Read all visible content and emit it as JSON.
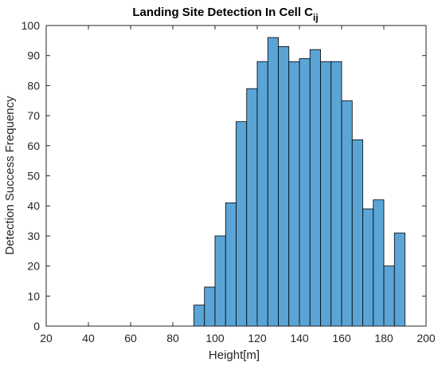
{
  "chart_data": {
    "type": "bar",
    "title": "Landing Site Detection In Cell C",
    "title_subscript": "ij",
    "xlabel": "Height[m]",
    "ylabel": "Detection Success Frequency",
    "xlim": [
      20,
      200
    ],
    "ylim": [
      0,
      100
    ],
    "xticks": [
      20,
      40,
      60,
      80,
      100,
      120,
      140,
      160,
      180,
      200
    ],
    "yticks": [
      0,
      10,
      20,
      30,
      40,
      50,
      60,
      70,
      80,
      90,
      100
    ],
    "bin_width": 5,
    "bins": [
      {
        "start": 90,
        "end": 95,
        "value": 7
      },
      {
        "start": 95,
        "end": 100,
        "value": 13
      },
      {
        "start": 100,
        "end": 105,
        "value": 30
      },
      {
        "start": 105,
        "end": 110,
        "value": 41
      },
      {
        "start": 110,
        "end": 115,
        "value": 68
      },
      {
        "start": 115,
        "end": 120,
        "value": 79
      },
      {
        "start": 120,
        "end": 125,
        "value": 88
      },
      {
        "start": 125,
        "end": 130,
        "value": 96
      },
      {
        "start": 130,
        "end": 135,
        "value": 93
      },
      {
        "start": 135,
        "end": 140,
        "value": 88
      },
      {
        "start": 140,
        "end": 145,
        "value": 89
      },
      {
        "start": 145,
        "end": 150,
        "value": 92
      },
      {
        "start": 150,
        "end": 155,
        "value": 88
      },
      {
        "start": 155,
        "end": 160,
        "value": 88
      },
      {
        "start": 160,
        "end": 165,
        "value": 75
      },
      {
        "start": 165,
        "end": 170,
        "value": 62
      },
      {
        "start": 170,
        "end": 175,
        "value": 39
      },
      {
        "start": 175,
        "end": 180,
        "value": 42
      },
      {
        "start": 180,
        "end": 185,
        "value": 20
      },
      {
        "start": 185,
        "end": 190,
        "value": 31
      }
    ],
    "grid": false,
    "legend": "none",
    "colors": {
      "bar_fill": "#5ba4d6",
      "bar_edge": "#000000",
      "axis": "#262626"
    }
  }
}
